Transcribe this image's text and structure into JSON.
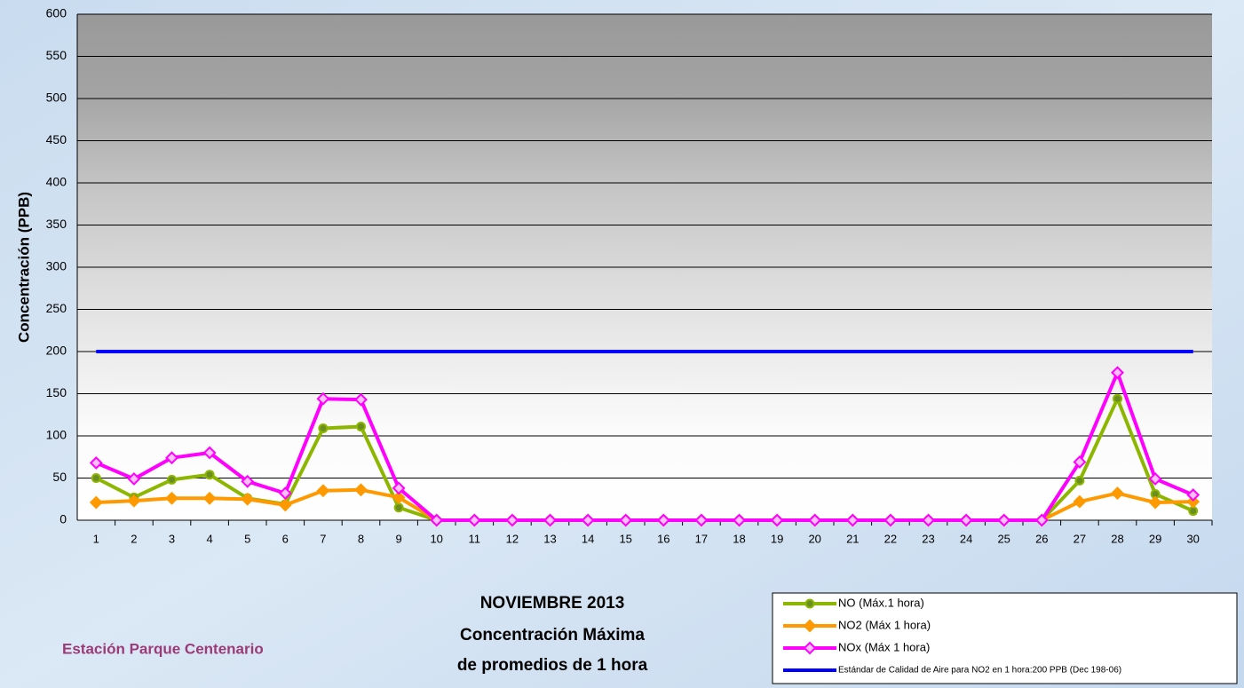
{
  "chart_data": {
    "type": "line",
    "title": [
      "NOVIEMBRE 2013",
      "Concentración Máxima",
      "de promedios de 1 hora"
    ],
    "station": "Estación Parque Centenario",
    "y_label": "Concentración  (PPB)",
    "categories": [
      "1",
      "2",
      "3",
      "4",
      "5",
      "6",
      "7",
      "8",
      "9",
      "10",
      "11",
      "12",
      "13",
      "14",
      "15",
      "16",
      "17",
      "18",
      "19",
      "20",
      "21",
      "22",
      "23",
      "24",
      "25",
      "26",
      "27",
      "28",
      "29",
      "30"
    ],
    "ylim": [
      0,
      600
    ],
    "yticks": [
      0,
      50,
      100,
      150,
      200,
      250,
      300,
      350,
      400,
      450,
      500,
      550,
      600
    ],
    "grid": true,
    "series": [
      {
        "name": "NO (Máx.1 hora)",
        "color": "#8db600",
        "marker": "circle",
        "values": [
          50,
          27,
          48,
          54,
          26,
          19,
          109,
          111,
          15,
          0,
          0,
          0,
          0,
          0,
          0,
          0,
          0,
          0,
          0,
          0,
          0,
          0,
          0,
          0,
          0,
          0,
          47,
          144,
          31,
          11
        ]
      },
      {
        "name": "NO2 (Máx 1 hora)",
        "color": "#ff9900",
        "marker": "diamond",
        "values": [
          21,
          23,
          26,
          26,
          25,
          18,
          35,
          36,
          27,
          0,
          0,
          0,
          0,
          0,
          0,
          0,
          0,
          0,
          0,
          0,
          0,
          0,
          0,
          0,
          0,
          0,
          22,
          32,
          21,
          22
        ]
      },
      {
        "name": "NOx (Máx 1 hora)",
        "color": "#ff00ff",
        "marker": "diamond",
        "values": [
          68,
          49,
          74,
          80,
          46,
          32,
          144,
          143,
          38,
          0,
          0,
          0,
          0,
          0,
          0,
          0,
          0,
          0,
          0,
          0,
          0,
          0,
          0,
          0,
          0,
          0,
          69,
          175,
          49,
          30
        ]
      },
      {
        "name": "Estándar de Calidad de Aire para NO2 en 1 hora:200 PPB (Dec 198-06)",
        "color": "#0000ff",
        "marker": "none",
        "values": [
          200,
          200,
          200,
          200,
          200,
          200,
          200,
          200,
          200,
          200,
          200,
          200,
          200,
          200,
          200,
          200,
          200,
          200,
          200,
          200,
          200,
          200,
          200,
          200,
          200,
          200,
          200,
          200,
          200,
          200
        ]
      }
    ]
  }
}
